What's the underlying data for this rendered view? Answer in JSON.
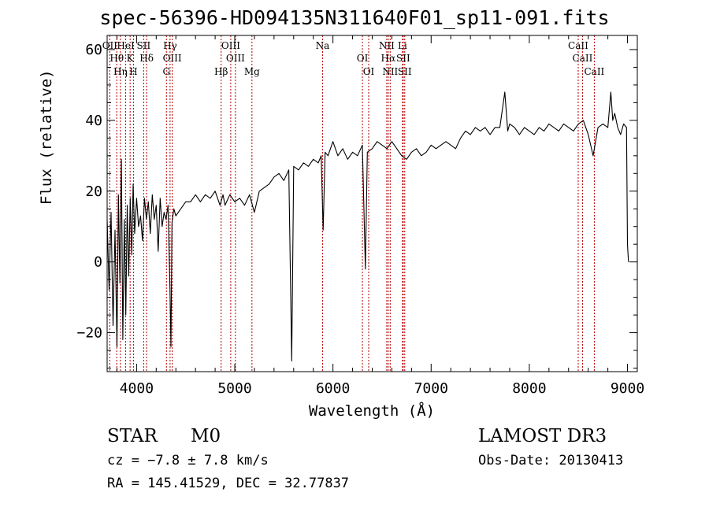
{
  "chart_data": {
    "type": "line",
    "title": "spec-56396-HD094135N311640F01_sp11-091.fits",
    "xlabel": "Wavelength (Å)",
    "ylabel": "Flux (relative)",
    "xlim": [
      3700,
      9100
    ],
    "ylim": [
      -31,
      64
    ],
    "xticks": [
      4000,
      5000,
      6000,
      7000,
      8000,
      9000
    ],
    "yticks": [
      -20,
      0,
      20,
      40,
      60
    ],
    "grid": false,
    "series": [
      {
        "values": [
          [
            3700,
            12
          ],
          [
            3720,
            -8
          ],
          [
            3740,
            14
          ],
          [
            3760,
            -18
          ],
          [
            3780,
            9
          ],
          [
            3800,
            -24
          ],
          [
            3815,
            19
          ],
          [
            3830,
            -6
          ],
          [
            3845,
            29
          ],
          [
            3860,
            -22
          ],
          [
            3875,
            12
          ],
          [
            3890,
            -15
          ],
          [
            3905,
            16
          ],
          [
            3920,
            -4
          ],
          [
            3935,
            18
          ],
          [
            3950,
            2
          ],
          [
            3965,
            22
          ],
          [
            3980,
            8
          ],
          [
            4000,
            18
          ],
          [
            4020,
            10
          ],
          [
            4040,
            13
          ],
          [
            4060,
            6
          ],
          [
            4080,
            18
          ],
          [
            4100,
            12
          ],
          [
            4120,
            17
          ],
          [
            4140,
            8
          ],
          [
            4160,
            19
          ],
          [
            4180,
            12
          ],
          [
            4200,
            16
          ],
          [
            4220,
            3
          ],
          [
            4240,
            18
          ],
          [
            4260,
            10
          ],
          [
            4280,
            14
          ],
          [
            4300,
            12
          ],
          [
            4320,
            16
          ],
          [
            4340,
            -8
          ],
          [
            4350,
            -24
          ],
          [
            4360,
            11
          ],
          [
            4380,
            15
          ],
          [
            4400,
            13
          ],
          [
            4450,
            15
          ],
          [
            4500,
            17
          ],
          [
            4550,
            17
          ],
          [
            4600,
            19
          ],
          [
            4650,
            17
          ],
          [
            4700,
            19
          ],
          [
            4750,
            18
          ],
          [
            4800,
            20
          ],
          [
            4850,
            16
          ],
          [
            4880,
            19
          ],
          [
            4900,
            16
          ],
          [
            4950,
            19
          ],
          [
            5000,
            17
          ],
          [
            5050,
            18
          ],
          [
            5100,
            16
          ],
          [
            5150,
            19
          ],
          [
            5200,
            14
          ],
          [
            5250,
            20
          ],
          [
            5300,
            21
          ],
          [
            5350,
            22
          ],
          [
            5400,
            24
          ],
          [
            5450,
            25
          ],
          [
            5500,
            23
          ],
          [
            5550,
            26
          ],
          [
            5580,
            -28
          ],
          [
            5600,
            27
          ],
          [
            5650,
            26
          ],
          [
            5700,
            28
          ],
          [
            5750,
            27
          ],
          [
            5800,
            29
          ],
          [
            5850,
            28
          ],
          [
            5880,
            30
          ],
          [
            5900,
            9
          ],
          [
            5920,
            31
          ],
          [
            5950,
            30
          ],
          [
            6000,
            34
          ],
          [
            6050,
            30
          ],
          [
            6100,
            32
          ],
          [
            6150,
            29
          ],
          [
            6200,
            31
          ],
          [
            6250,
            30
          ],
          [
            6300,
            33
          ],
          [
            6330,
            -2
          ],
          [
            6350,
            31
          ],
          [
            6400,
            32
          ],
          [
            6450,
            34
          ],
          [
            6500,
            33
          ],
          [
            6550,
            32
          ],
          [
            6600,
            34
          ],
          [
            6650,
            32
          ],
          [
            6700,
            30
          ],
          [
            6750,
            29
          ],
          [
            6800,
            31
          ],
          [
            6850,
            32
          ],
          [
            6900,
            30
          ],
          [
            6950,
            31
          ],
          [
            7000,
            33
          ],
          [
            7050,
            32
          ],
          [
            7100,
            33
          ],
          [
            7150,
            34
          ],
          [
            7200,
            33
          ],
          [
            7250,
            32
          ],
          [
            7300,
            35
          ],
          [
            7350,
            37
          ],
          [
            7400,
            36
          ],
          [
            7450,
            38
          ],
          [
            7500,
            37
          ],
          [
            7550,
            38
          ],
          [
            7600,
            36
          ],
          [
            7650,
            38
          ],
          [
            7700,
            38
          ],
          [
            7750,
            48
          ],
          [
            7780,
            37
          ],
          [
            7800,
            39
          ],
          [
            7850,
            38
          ],
          [
            7900,
            36
          ],
          [
            7950,
            38
          ],
          [
            8000,
            37
          ],
          [
            8050,
            36
          ],
          [
            8100,
            38
          ],
          [
            8150,
            37
          ],
          [
            8200,
            39
          ],
          [
            8250,
            38
          ],
          [
            8300,
            37
          ],
          [
            8350,
            39
          ],
          [
            8400,
            38
          ],
          [
            8450,
            37
          ],
          [
            8500,
            39
          ],
          [
            8550,
            40
          ],
          [
            8600,
            36
          ],
          [
            8650,
            30
          ],
          [
            8700,
            38
          ],
          [
            8750,
            39
          ],
          [
            8800,
            38
          ],
          [
            8830,
            48
          ],
          [
            8850,
            40
          ],
          [
            8870,
            42
          ],
          [
            8900,
            38
          ],
          [
            8930,
            36
          ],
          [
            8960,
            39
          ],
          [
            8990,
            38
          ],
          [
            9000,
            5
          ],
          [
            9010,
            0
          ]
        ]
      }
    ],
    "lines": [
      {
        "label": "OII",
        "x": 3727
      },
      {
        "label": "Hθ",
        "x": 3798
      },
      {
        "label": "Hη",
        "x": 3835
      },
      {
        "label": "HeI",
        "x": 3889
      },
      {
        "label": "K",
        "x": 3934
      },
      {
        "label": "H",
        "x": 3968
      },
      {
        "label": "SII",
        "x": 4072
      },
      {
        "label": "Hδ",
        "x": 4102
      },
      {
        "label": "G",
        "x": 4304
      },
      {
        "label": "Hγ",
        "x": 4341
      },
      {
        "label": "OIII",
        "x": 4363
      },
      {
        "label": "Hβ",
        "x": 4861
      },
      {
        "label": "OIII",
        "x": 4959
      },
      {
        "label": "OIII",
        "x": 5007
      },
      {
        "label": "Mg",
        "x": 5175
      },
      {
        "label": "Na",
        "x": 5894
      },
      {
        "label": "OI",
        "x": 6300
      },
      {
        "label": "OI",
        "x": 6364
      },
      {
        "label": "NII",
        "x": 6548
      },
      {
        "label": "Hα",
        "x": 6563
      },
      {
        "label": "NII",
        "x": 6583
      },
      {
        "label": "Li",
        "x": 6708
      },
      {
        "label": "SII",
        "x": 6716
      },
      {
        "label": "SII",
        "x": 6731
      },
      {
        "label": "CaII",
        "x": 8498
      },
      {
        "label": "CaII",
        "x": 8542
      },
      {
        "label": "CaII",
        "x": 8662
      }
    ]
  },
  "info": {
    "class": "STAR",
    "subclass": "M0",
    "survey": "LAMOST DR3",
    "cz": "cz = −7.8 ± 7.8 km/s",
    "obs_date": "Obs-Date: 20130413",
    "coords": "RA = 145.41529, DEC =  32.77837"
  }
}
